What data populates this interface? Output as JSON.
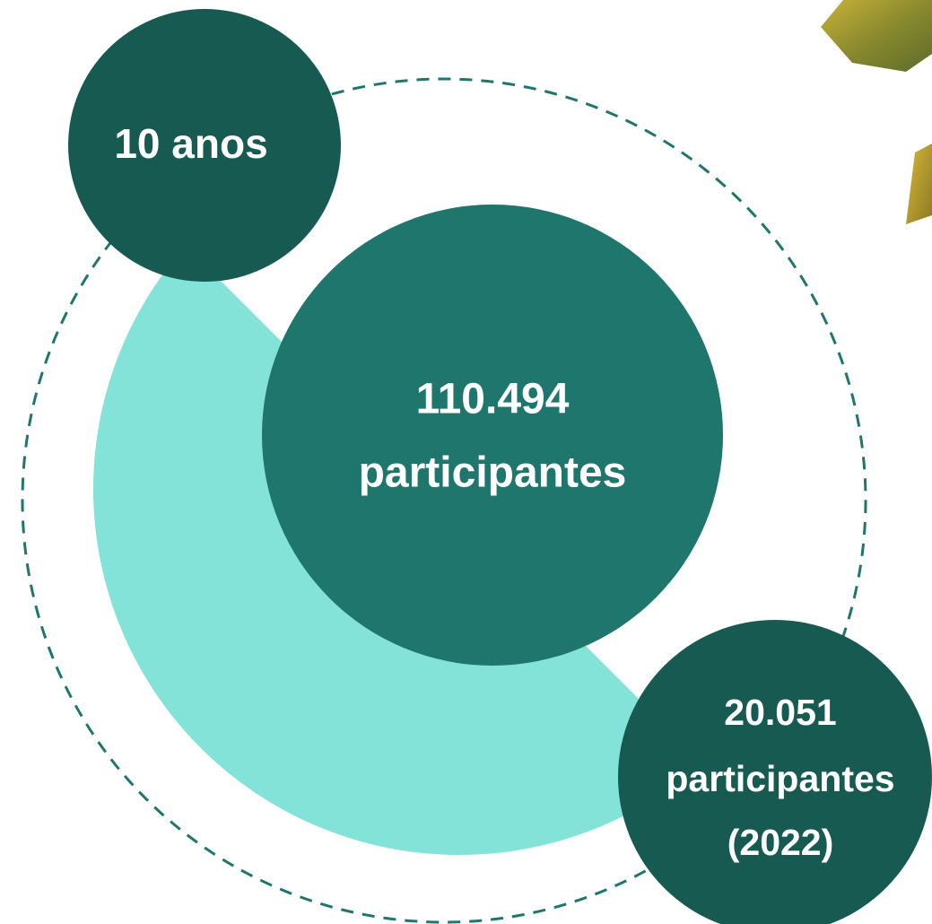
{
  "nodes": [
    {
      "lines": [
        "10 anos"
      ]
    },
    {
      "lines": [
        "110.494",
        "participantes"
      ]
    },
    {
      "lines": [
        "20.051",
        "participantes",
        "(2022)"
      ]
    }
  ]
}
